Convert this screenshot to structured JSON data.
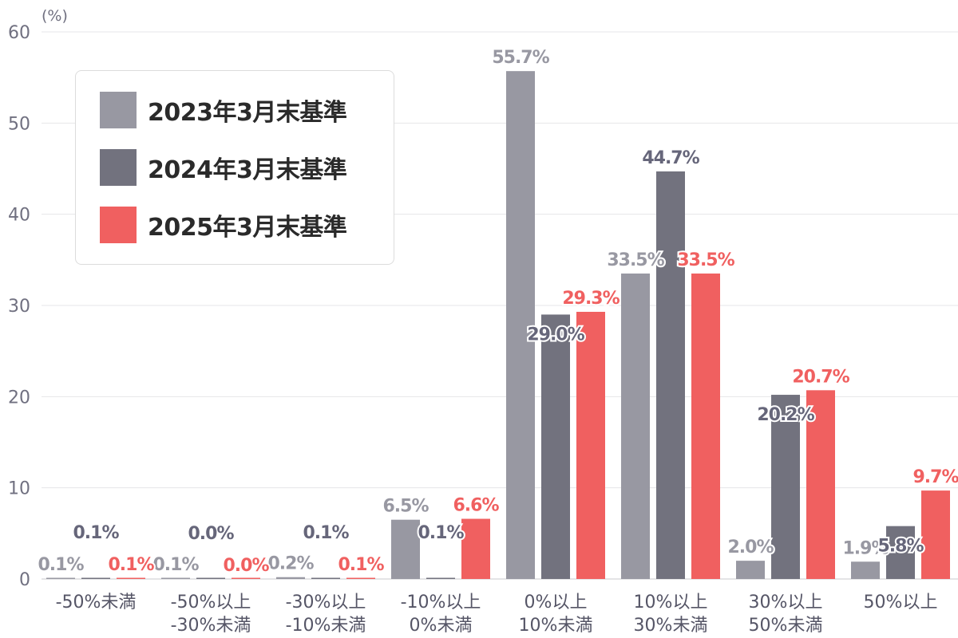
{
  "chart_data": {
    "type": "bar",
    "unit_label": "(%)",
    "yticks": [
      "0",
      "10",
      "20",
      "30",
      "40",
      "50",
      "60"
    ],
    "ylim": [
      0,
      60
    ],
    "grid": true,
    "legend_placement": "top-left",
    "categories": [
      [
        "-50%未満"
      ],
      [
        "-50%以上",
        "-30%未満"
      ],
      [
        "-30%以上",
        "-10%未満"
      ],
      [
        "-10%以上",
        "0%未満"
      ],
      [
        "0%以上",
        "10%未満"
      ],
      [
        "10%以上",
        "30%未満"
      ],
      [
        "30%以上",
        "50%未満"
      ],
      [
        "50%以上"
      ]
    ],
    "series": [
      {
        "name": "2023年3月末基準",
        "color": "#9898a2",
        "values": [
          0.1,
          0.1,
          0.2,
          6.5,
          55.7,
          33.5,
          2.0,
          1.9
        ],
        "labels": [
          "0.1%",
          "0.1%",
          "0.2%",
          "6.5%",
          "55.7%",
          "33.5%",
          "2.0%",
          "1.9%"
        ]
      },
      {
        "name": "2024年3月末基準",
        "color": "#72727e",
        "values": [
          0.1,
          0.0,
          0.1,
          0.1,
          29.0,
          44.7,
          20.2,
          5.8
        ],
        "labels": [
          "0.1%",
          "0.0%",
          "0.1%",
          "0.1%",
          "29.0%",
          "44.7%",
          "20.2%",
          "5.8%"
        ]
      },
      {
        "name": "2025年3月末基準",
        "color": "#f06060",
        "values": [
          0.1,
          0.0,
          0.1,
          6.6,
          29.3,
          33.5,
          20.7,
          9.7
        ],
        "labels": [
          "0.1%",
          "0.0%",
          "0.1%",
          "6.6%",
          "29.3%",
          "33.5%",
          "20.7%",
          "9.7%"
        ]
      }
    ]
  }
}
